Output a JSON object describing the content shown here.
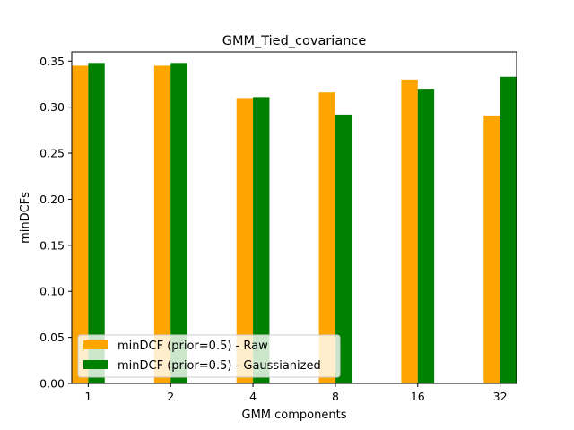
{
  "chart_data": {
    "type": "bar",
    "title": "GMM_Tied_covariance",
    "xlabel": "GMM components",
    "ylabel": "minDCFs",
    "categories": [
      "1",
      "2",
      "4",
      "8",
      "16",
      "32"
    ],
    "series": [
      {
        "name": "minDCF (prior=0.5) - Raw",
        "color": "#ffa500",
        "values": [
          0.345,
          0.345,
          0.31,
          0.316,
          0.33,
          0.291
        ]
      },
      {
        "name": "minDCF (prior=0.5) - Gaussianized",
        "color": "#008000",
        "values": [
          0.348,
          0.348,
          0.311,
          0.292,
          0.32,
          0.333
        ]
      }
    ],
    "ylim": [
      0,
      0.36
    ],
    "yticks": [
      "0.00",
      "0.05",
      "0.10",
      "0.15",
      "0.20",
      "0.25",
      "0.30",
      "0.35"
    ],
    "grid": false,
    "legend_position": "lower-left"
  }
}
